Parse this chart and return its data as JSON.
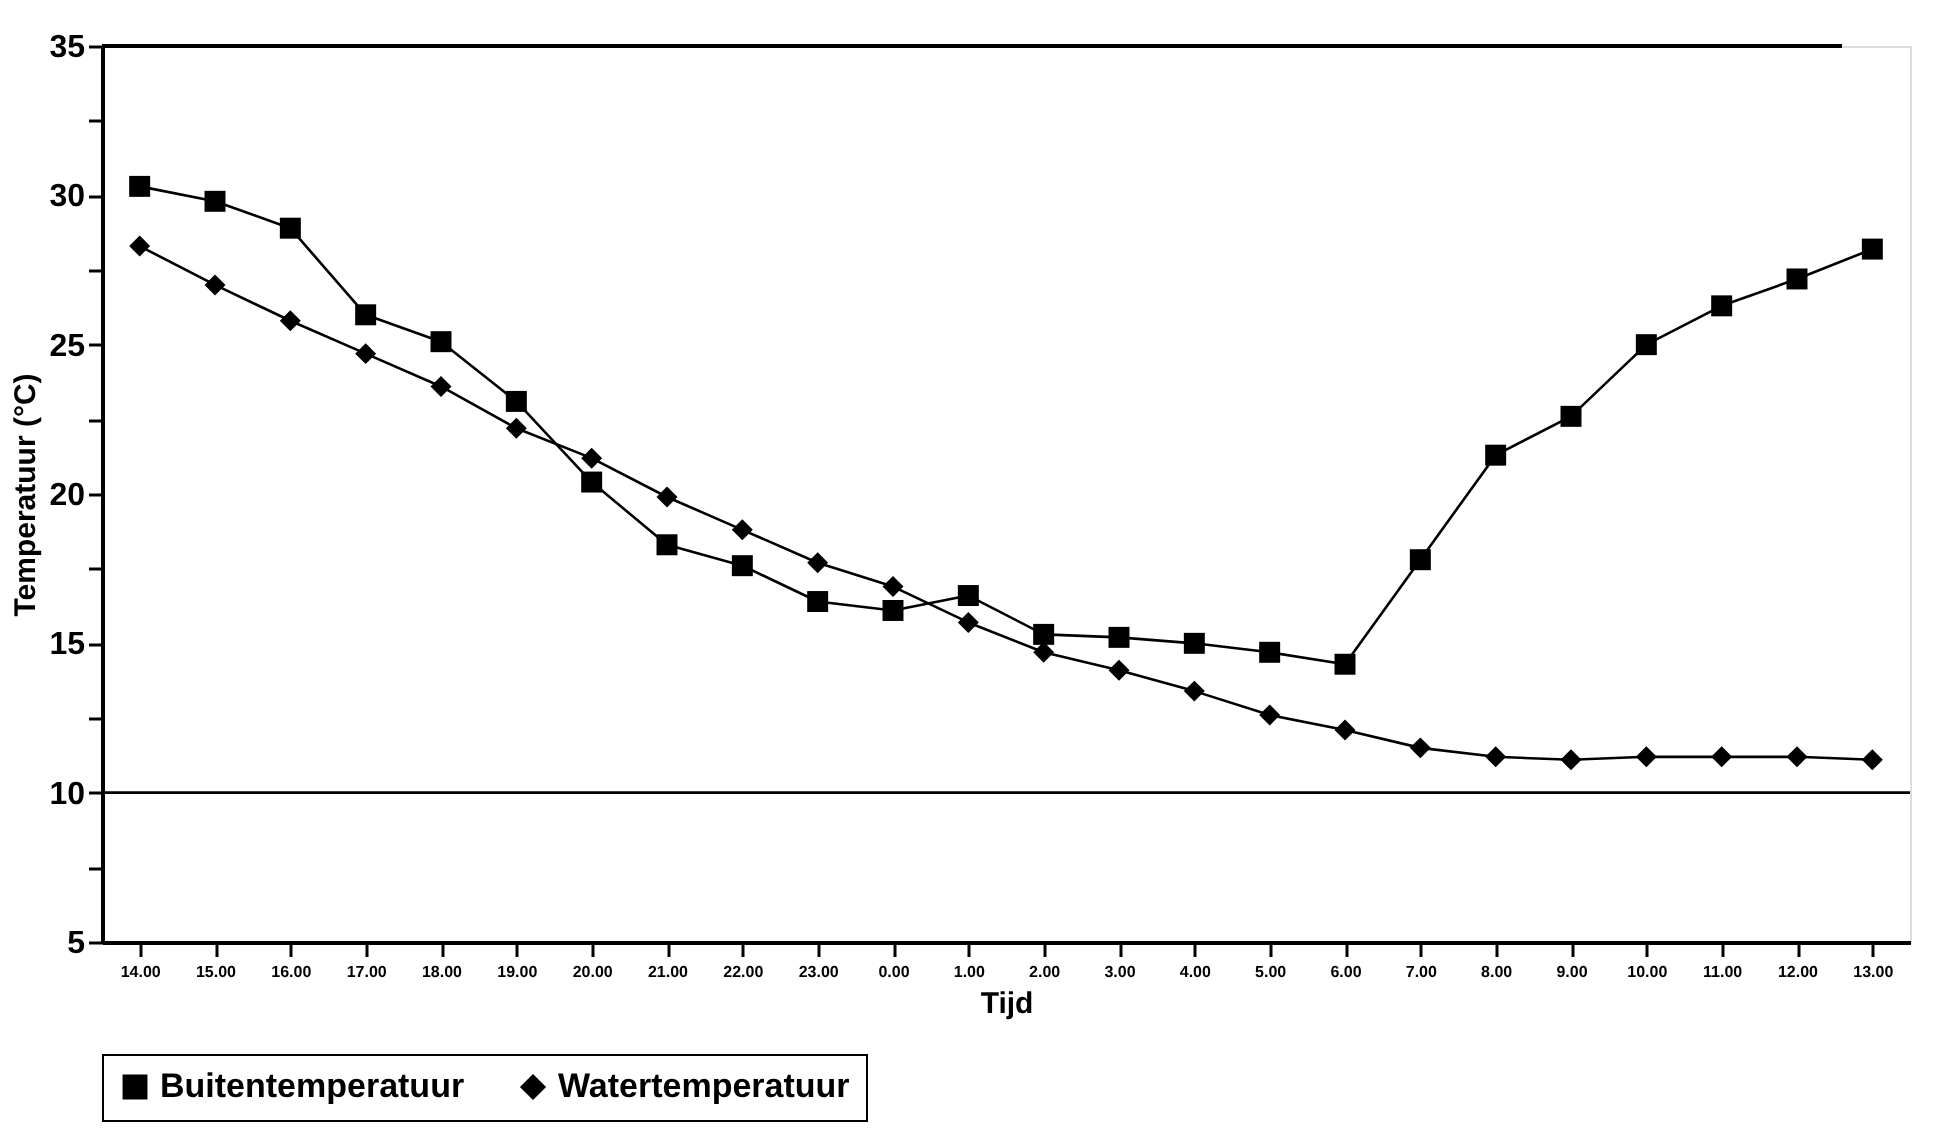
{
  "chart_data": {
    "type": "line",
    "xlabel": "Tijd",
    "ylabel": "Temperatuur (°C)",
    "categories": [
      "14.00",
      "15.00",
      "16.00",
      "17.00",
      "18.00",
      "19.00",
      "20.00",
      "21.00",
      "22.00",
      "23.00",
      "0.00",
      "1.00",
      "2.00",
      "3.00",
      "4.00",
      "5.00",
      "6.00",
      "7.00",
      "8.00",
      "9.00",
      "10.00",
      "11.00",
      "12.00",
      "13.00"
    ],
    "series": [
      {
        "name": "Buitentemperatuur",
        "color": "#000000",
        "marker": "square",
        "values": [
          30.3,
          29.8,
          28.9,
          26.0,
          25.1,
          23.1,
          20.4,
          18.3,
          17.6,
          16.4,
          16.1,
          16.6,
          15.3,
          15.2,
          15.0,
          14.7,
          14.3,
          17.8,
          21.3,
          22.6,
          25.0,
          26.3,
          27.2,
          28.2
        ]
      },
      {
        "name": "Watertemperatuur",
        "color": "#000000",
        "marker": "diamond",
        "values": [
          28.3,
          27.0,
          25.8,
          24.7,
          23.6,
          22.2,
          21.2,
          19.9,
          18.8,
          17.7,
          16.9,
          15.7,
          14.7,
          14.1,
          13.4,
          12.6,
          12.1,
          11.5,
          11.2,
          11.1,
          11.2,
          11.2,
          11.2,
          11.1
        ]
      }
    ],
    "ylim": [
      5,
      35
    ],
    "yticks": [
      5,
      {
        "value": 7.5,
        "label": null
      },
      10,
      {
        "value": 12.5,
        "label": null
      },
      15,
      {
        "value": 17.5,
        "label": null
      },
      20,
      {
        "value": 22.5,
        "label": null
      },
      25,
      {
        "value": 27.5,
        "label": null
      },
      30,
      {
        "value": 32.5,
        "label": null
      },
      35
    ],
    "ref_lines": [
      {
        "axis": "y",
        "value": 10,
        "color": "#000000"
      }
    ],
    "grid": false,
    "legend": "bottom",
    "line_style": "solid"
  }
}
